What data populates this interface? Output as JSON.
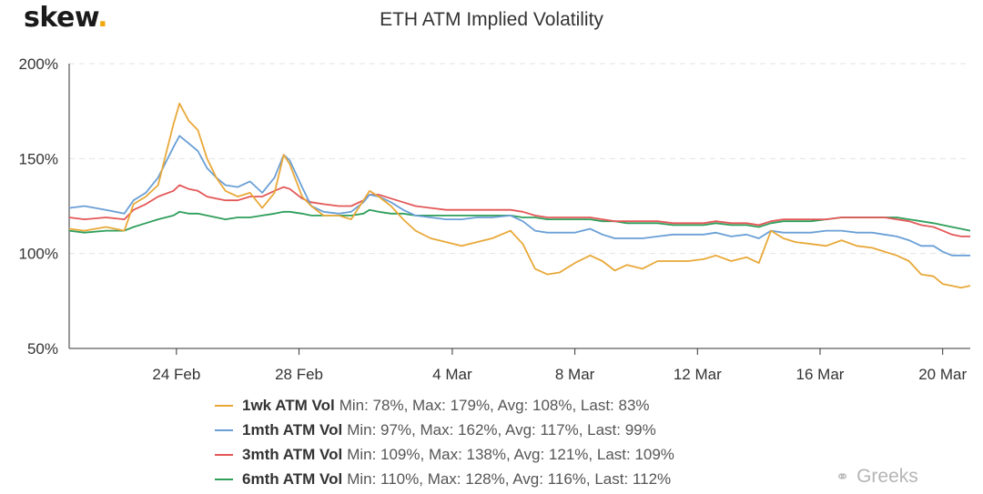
{
  "logo": {
    "text": "skew",
    "dot": "."
  },
  "watermark": {
    "icon": "wechat-icon",
    "text": "Greeks"
  },
  "colors": {
    "grid": "#e3e3e3",
    "axis": "#333333",
    "tick_text": "#333333"
  },
  "chart_data": {
    "type": "line",
    "title": "ETH ATM Implied Volatility",
    "xlabel": "",
    "ylabel": "",
    "ylim": [
      50,
      200
    ],
    "xlim": [
      20.5,
      49.9
    ],
    "x_unit": "day of 2020 (20 = 20 Feb, 49 = 20 Mar)",
    "x_ticks": [
      24,
      28,
      33,
      37,
      41,
      45,
      49
    ],
    "x_tick_labels": [
      "24 Feb",
      "28 Feb",
      "4 Mar",
      "8 Mar",
      "12 Mar",
      "16 Mar",
      "20 Mar"
    ],
    "y_ticks": [
      50,
      100,
      150,
      200
    ],
    "y_tick_labels": [
      "50%",
      "100%",
      "150%",
      "200%"
    ],
    "grid": "horizontal dashed",
    "legend_position": "bottom",
    "series": [
      {
        "name": "1wk ATM Vol",
        "stats": "Min: 78%, Max: 179%, Avg: 108%, Last: 83%",
        "color": "#e8a838",
        "points": [
          [
            20.5,
            113
          ],
          [
            21,
            112
          ],
          [
            21.7,
            114
          ],
          [
            22.3,
            112
          ],
          [
            22.6,
            126
          ],
          [
            23,
            130
          ],
          [
            23.4,
            136
          ],
          [
            23.9,
            168
          ],
          [
            24.1,
            179
          ],
          [
            24.4,
            170
          ],
          [
            24.7,
            165
          ],
          [
            25,
            150
          ],
          [
            25.3,
            140
          ],
          [
            25.6,
            133
          ],
          [
            26,
            130
          ],
          [
            26.4,
            132
          ],
          [
            26.8,
            124
          ],
          [
            27.2,
            132
          ],
          [
            27.5,
            152
          ],
          [
            27.7,
            147
          ],
          [
            28.1,
            130
          ],
          [
            28.4,
            125
          ],
          [
            28.8,
            120
          ],
          [
            29.3,
            120
          ],
          [
            29.7,
            118
          ],
          [
            30.1,
            128
          ],
          [
            30.3,
            133
          ],
          [
            30.6,
            130
          ],
          [
            31,
            125
          ],
          [
            31.4,
            118
          ],
          [
            31.8,
            112
          ],
          [
            32.3,
            108
          ],
          [
            32.8,
            106
          ],
          [
            33.3,
            104
          ],
          [
            33.8,
            106
          ],
          [
            34.3,
            108
          ],
          [
            34.9,
            112
          ],
          [
            35.3,
            105
          ],
          [
            35.7,
            92
          ],
          [
            36.1,
            89
          ],
          [
            36.5,
            90
          ],
          [
            37,
            95
          ],
          [
            37.5,
            99
          ],
          [
            37.9,
            96
          ],
          [
            38.3,
            91
          ],
          [
            38.7,
            94
          ],
          [
            39.2,
            92
          ],
          [
            39.7,
            96
          ],
          [
            40.2,
            96
          ],
          [
            40.7,
            96
          ],
          [
            41.2,
            97
          ],
          [
            41.6,
            99
          ],
          [
            42.1,
            96
          ],
          [
            42.6,
            98
          ],
          [
            43,
            95
          ],
          [
            43.4,
            112
          ],
          [
            43.8,
            108
          ],
          [
            44.2,
            106
          ],
          [
            44.7,
            105
          ],
          [
            45.2,
            104
          ],
          [
            45.7,
            107
          ],
          [
            46.2,
            104
          ],
          [
            46.7,
            103
          ],
          [
            47.1,
            101
          ],
          [
            47.5,
            99
          ],
          [
            47.9,
            96
          ],
          [
            48.3,
            89
          ],
          [
            48.7,
            88
          ],
          [
            49,
            84
          ],
          [
            49.3,
            83
          ],
          [
            49.6,
            82
          ],
          [
            49.9,
            83
          ]
        ]
      },
      {
        "name": "1mth ATM Vol",
        "stats": "Min: 97%, Max: 162%, Avg: 117%, Last: 99%",
        "color": "#6a9fd6",
        "points": [
          [
            20.5,
            124
          ],
          [
            21,
            125
          ],
          [
            21.7,
            123
          ],
          [
            22.3,
            121
          ],
          [
            22.6,
            128
          ],
          [
            23,
            132
          ],
          [
            23.4,
            140
          ],
          [
            23.9,
            156
          ],
          [
            24.1,
            162
          ],
          [
            24.4,
            158
          ],
          [
            24.7,
            154
          ],
          [
            25,
            145
          ],
          [
            25.3,
            140
          ],
          [
            25.6,
            136
          ],
          [
            26,
            135
          ],
          [
            26.4,
            138
          ],
          [
            26.8,
            132
          ],
          [
            27.2,
            140
          ],
          [
            27.5,
            152
          ],
          [
            27.7,
            149
          ],
          [
            28.1,
            135
          ],
          [
            28.4,
            125
          ],
          [
            28.8,
            122
          ],
          [
            29.3,
            121
          ],
          [
            29.7,
            122
          ],
          [
            30.1,
            127
          ],
          [
            30.3,
            131
          ],
          [
            30.6,
            130
          ],
          [
            31,
            127
          ],
          [
            31.4,
            123
          ],
          [
            31.8,
            120
          ],
          [
            32.3,
            119
          ],
          [
            32.8,
            118
          ],
          [
            33.3,
            118
          ],
          [
            33.8,
            119
          ],
          [
            34.3,
            119
          ],
          [
            34.9,
            120
          ],
          [
            35.3,
            117
          ],
          [
            35.7,
            112
          ],
          [
            36.1,
            111
          ],
          [
            36.5,
            111
          ],
          [
            37,
            111
          ],
          [
            37.5,
            113
          ],
          [
            37.9,
            110
          ],
          [
            38.3,
            108
          ],
          [
            38.7,
            108
          ],
          [
            39.2,
            108
          ],
          [
            39.7,
            109
          ],
          [
            40.2,
            110
          ],
          [
            40.7,
            110
          ],
          [
            41.2,
            110
          ],
          [
            41.6,
            111
          ],
          [
            42.1,
            109
          ],
          [
            42.6,
            110
          ],
          [
            43,
            108
          ],
          [
            43.4,
            112
          ],
          [
            43.8,
            111
          ],
          [
            44.2,
            111
          ],
          [
            44.7,
            111
          ],
          [
            45.2,
            112
          ],
          [
            45.7,
            112
          ],
          [
            46.2,
            111
          ],
          [
            46.7,
            111
          ],
          [
            47.1,
            110
          ],
          [
            47.5,
            109
          ],
          [
            47.9,
            107
          ],
          [
            48.3,
            104
          ],
          [
            48.7,
            104
          ],
          [
            49,
            101
          ],
          [
            49.3,
            99
          ],
          [
            49.6,
            99
          ],
          [
            49.9,
            99
          ]
        ]
      },
      {
        "name": "3mth ATM Vol",
        "stats": "Min: 109%, Max: 138%, Avg: 121%, Last: 109%",
        "color": "#e45757",
        "points": [
          [
            20.5,
            119
          ],
          [
            21,
            118
          ],
          [
            21.7,
            119
          ],
          [
            22.3,
            118
          ],
          [
            22.6,
            123
          ],
          [
            23,
            126
          ],
          [
            23.4,
            130
          ],
          [
            23.9,
            133
          ],
          [
            24.1,
            136
          ],
          [
            24.4,
            134
          ],
          [
            24.7,
            133
          ],
          [
            25,
            130
          ],
          [
            25.3,
            129
          ],
          [
            25.6,
            128
          ],
          [
            26,
            128
          ],
          [
            26.4,
            130
          ],
          [
            26.8,
            130
          ],
          [
            27.2,
            133
          ],
          [
            27.5,
            135
          ],
          [
            27.7,
            134
          ],
          [
            28.1,
            129
          ],
          [
            28.4,
            127
          ],
          [
            28.8,
            126
          ],
          [
            29.3,
            125
          ],
          [
            29.7,
            125
          ],
          [
            30.1,
            128
          ],
          [
            30.3,
            131
          ],
          [
            30.6,
            131
          ],
          [
            31,
            129
          ],
          [
            31.4,
            127
          ],
          [
            31.8,
            125
          ],
          [
            32.3,
            124
          ],
          [
            32.8,
            123
          ],
          [
            33.3,
            123
          ],
          [
            33.8,
            123
          ],
          [
            34.3,
            123
          ],
          [
            34.9,
            123
          ],
          [
            35.3,
            122
          ],
          [
            35.7,
            120
          ],
          [
            36.1,
            119
          ],
          [
            36.5,
            119
          ],
          [
            37,
            119
          ],
          [
            37.5,
            119
          ],
          [
            37.9,
            118
          ],
          [
            38.3,
            117
          ],
          [
            38.7,
            117
          ],
          [
            39.2,
            117
          ],
          [
            39.7,
            117
          ],
          [
            40.2,
            116
          ],
          [
            40.7,
            116
          ],
          [
            41.2,
            116
          ],
          [
            41.6,
            117
          ],
          [
            42.1,
            116
          ],
          [
            42.6,
            116
          ],
          [
            43,
            115
          ],
          [
            43.4,
            117
          ],
          [
            43.8,
            118
          ],
          [
            44.2,
            118
          ],
          [
            44.7,
            118
          ],
          [
            45.2,
            118
          ],
          [
            45.7,
            119
          ],
          [
            46.2,
            119
          ],
          [
            46.7,
            119
          ],
          [
            47.1,
            119
          ],
          [
            47.5,
            118
          ],
          [
            47.9,
            117
          ],
          [
            48.3,
            115
          ],
          [
            48.7,
            114
          ],
          [
            49,
            112
          ],
          [
            49.3,
            110
          ],
          [
            49.6,
            109
          ],
          [
            49.9,
            109
          ]
        ]
      },
      {
        "name": "6mth ATM Vol",
        "stats": "Min: 110%, Max: 128%, Avg: 116%, Last: 112%",
        "color": "#2e9e5a",
        "points": [
          [
            20.5,
            112
          ],
          [
            21,
            111
          ],
          [
            21.7,
            112
          ],
          [
            22.3,
            112
          ],
          [
            22.6,
            114
          ],
          [
            23,
            116
          ],
          [
            23.4,
            118
          ],
          [
            23.9,
            120
          ],
          [
            24.1,
            122
          ],
          [
            24.4,
            121
          ],
          [
            24.7,
            121
          ],
          [
            25,
            120
          ],
          [
            25.3,
            119
          ],
          [
            25.6,
            118
          ],
          [
            26,
            119
          ],
          [
            26.4,
            119
          ],
          [
            26.8,
            120
          ],
          [
            27.2,
            121
          ],
          [
            27.5,
            122
          ],
          [
            27.7,
            122
          ],
          [
            28.1,
            121
          ],
          [
            28.4,
            120
          ],
          [
            28.8,
            120
          ],
          [
            29.3,
            120
          ],
          [
            29.7,
            120
          ],
          [
            30.1,
            121
          ],
          [
            30.3,
            123
          ],
          [
            30.6,
            122
          ],
          [
            31,
            121
          ],
          [
            31.4,
            121
          ],
          [
            31.8,
            120
          ],
          [
            32.3,
            120
          ],
          [
            32.8,
            120
          ],
          [
            33.3,
            120
          ],
          [
            33.8,
            120
          ],
          [
            34.3,
            120
          ],
          [
            34.9,
            120
          ],
          [
            35.3,
            119
          ],
          [
            35.7,
            119
          ],
          [
            36.1,
            118
          ],
          [
            36.5,
            118
          ],
          [
            37,
            118
          ],
          [
            37.5,
            118
          ],
          [
            37.9,
            117
          ],
          [
            38.3,
            117
          ],
          [
            38.7,
            116
          ],
          [
            39.2,
            116
          ],
          [
            39.7,
            116
          ],
          [
            40.2,
            115
          ],
          [
            40.7,
            115
          ],
          [
            41.2,
            115
          ],
          [
            41.6,
            116
          ],
          [
            42.1,
            115
          ],
          [
            42.6,
            115
          ],
          [
            43,
            114
          ],
          [
            43.4,
            116
          ],
          [
            43.8,
            117
          ],
          [
            44.2,
            117
          ],
          [
            44.7,
            117
          ],
          [
            45.2,
            118
          ],
          [
            45.7,
            119
          ],
          [
            46.2,
            119
          ],
          [
            46.7,
            119
          ],
          [
            47.1,
            119
          ],
          [
            47.5,
            119
          ],
          [
            47.9,
            118
          ],
          [
            48.3,
            117
          ],
          [
            48.7,
            116
          ],
          [
            49,
            115
          ],
          [
            49.3,
            114
          ],
          [
            49.6,
            113
          ],
          [
            49.9,
            112
          ]
        ]
      }
    ]
  }
}
